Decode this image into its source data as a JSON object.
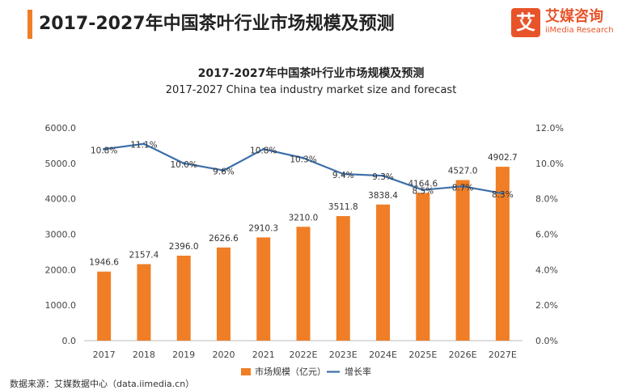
{
  "header": {
    "title": "2017-2027年中国茶叶行业市场规模及预测"
  },
  "brand": {
    "mark": "艾",
    "name_cn": "艾媒咨询",
    "name_en": "iiMedia Research"
  },
  "source": "数据来源：艾媒数据中心（data.iimedia.cn）",
  "chart_data": {
    "type": "bar",
    "title": "2017-2027年中国茶叶行业市场规模及预测",
    "subtitle": "2017-2027 China tea industry market size and forecast",
    "categories": [
      "2017",
      "2018",
      "2019",
      "2020",
      "2021",
      "2022E",
      "2023E",
      "2024E",
      "2025E",
      "2026E",
      "2027E"
    ],
    "series": [
      {
        "name": "市场规模（亿元）",
        "type": "bar",
        "axis": "left",
        "color": "#f07e26",
        "values": [
          1946.6,
          2157.4,
          2396.0,
          2626.6,
          2910.3,
          3210.0,
          3511.8,
          3838.4,
          4164.6,
          4527.0,
          4902.7
        ],
        "labels": [
          "1946.6",
          "2157.4",
          "2396.0",
          "2626.6",
          "2910.3",
          "3210.0",
          "3511.8",
          "3838.4",
          "4164.6",
          "4527.0",
          "4902.7"
        ]
      },
      {
        "name": "增长率",
        "type": "line",
        "axis": "right",
        "color": "#3d6fa8",
        "values": [
          10.8,
          11.1,
          10.0,
          9.6,
          10.8,
          10.3,
          9.4,
          9.3,
          8.5,
          8.7,
          8.3
        ],
        "labels": [
          "10.8%",
          "11.1%",
          "10.0%",
          "9.6%",
          "10.8%",
          "10.3%",
          "9.4%",
          "9.3%",
          "8.5%",
          "8.7%",
          "8.3%"
        ]
      }
    ],
    "y_left": {
      "range": [
        0,
        6000
      ],
      "ticks": [
        "0.0",
        "1000.0",
        "2000.0",
        "3000.0",
        "4000.0",
        "5000.0",
        "6000.0"
      ]
    },
    "y_right": {
      "range": [
        0,
        12
      ],
      "ticks": [
        "0.0%",
        "2.0%",
        "4.0%",
        "6.0%",
        "8.0%",
        "10.0%",
        "12.0%"
      ]
    },
    "grid": false,
    "legend": "bottom-center"
  }
}
